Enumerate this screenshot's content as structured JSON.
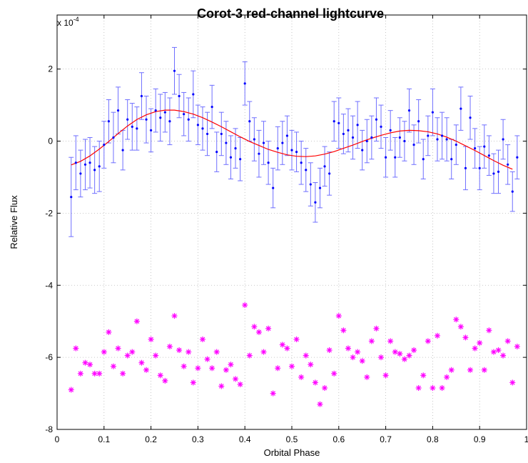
{
  "chart_data": {
    "type": "scatter",
    "title": "Corot-3  red-channel lightcurve",
    "xlabel": "Orbital Phase",
    "ylabel": "Relative Flux",
    "y_scale_label": "x 10",
    "y_scale_exponent": "-4",
    "xlim": [
      0,
      1
    ],
    "ylim": [
      -8,
      3.5
    ],
    "grid": true,
    "x_ticks": [
      "0",
      "0.1",
      "0.2",
      "0.3",
      "0.4",
      "0.5",
      "0.6",
      "0.7",
      "0.8",
      "0.9",
      "1"
    ],
    "y_ticks": [
      "-8",
      "-6",
      "-4",
      "-2",
      "0",
      "2"
    ],
    "model": {
      "name": "",
      "color": "#ff0000",
      "x": [
        0.03,
        0.05,
        0.07,
        0.09,
        0.11,
        0.13,
        0.15,
        0.17,
        0.19,
        0.21,
        0.23,
        0.25,
        0.27,
        0.29,
        0.31,
        0.33,
        0.35,
        0.37,
        0.39,
        0.41,
        0.43,
        0.45,
        0.47,
        0.49,
        0.51,
        0.53,
        0.55,
        0.57,
        0.59,
        0.61,
        0.63,
        0.65,
        0.67,
        0.69,
        0.71,
        0.73,
        0.75,
        0.77,
        0.79,
        0.81,
        0.83,
        0.85,
        0.87,
        0.89,
        0.91,
        0.93,
        0.95,
        0.97
      ],
      "y": [
        -0.66,
        -0.56,
        -0.41,
        -0.22,
        -0.01,
        0.21,
        0.42,
        0.6,
        0.73,
        0.82,
        0.86,
        0.86,
        0.82,
        0.75,
        0.65,
        0.53,
        0.4,
        0.26,
        0.12,
        -0.01,
        -0.12,
        -0.23,
        -0.31,
        -0.38,
        -0.42,
        -0.43,
        -0.41,
        -0.36,
        -0.29,
        -0.2,
        -0.11,
        -0.01,
        0.08,
        0.16,
        0.23,
        0.28,
        0.3,
        0.29,
        0.26,
        0.2,
        0.11,
        0.0,
        -0.13,
        -0.26,
        -0.4,
        -0.54,
        -0.67,
        -0.78
      ]
    },
    "data_series": {
      "name": "",
      "color": "#0000ff",
      "error_bar_color": "#6f6fff",
      "x": [
        0.03,
        0.04,
        0.05,
        0.06,
        0.07,
        0.08,
        0.09,
        0.1,
        0.11,
        0.12,
        0.13,
        0.14,
        0.15,
        0.16,
        0.17,
        0.18,
        0.19,
        0.2,
        0.21,
        0.22,
        0.23,
        0.24,
        0.25,
        0.26,
        0.27,
        0.28,
        0.29,
        0.3,
        0.31,
        0.32,
        0.33,
        0.34,
        0.35,
        0.36,
        0.37,
        0.38,
        0.39,
        0.4,
        0.41,
        0.42,
        0.43,
        0.44,
        0.45,
        0.46,
        0.47,
        0.48,
        0.49,
        0.5,
        0.51,
        0.52,
        0.53,
        0.54,
        0.55,
        0.56,
        0.57,
        0.58,
        0.59,
        0.6,
        0.61,
        0.62,
        0.63,
        0.64,
        0.65,
        0.66,
        0.67,
        0.68,
        0.69,
        0.7,
        0.71,
        0.72,
        0.73,
        0.74,
        0.75,
        0.76,
        0.77,
        0.78,
        0.79,
        0.8,
        0.81,
        0.82,
        0.83,
        0.84,
        0.85,
        0.86,
        0.87,
        0.88,
        0.89,
        0.9,
        0.91,
        0.92,
        0.93,
        0.94,
        0.95,
        0.96,
        0.97,
        0.98
      ],
      "y": [
        -1.55,
        -0.6,
        -0.9,
        -0.65,
        -0.6,
        -0.8,
        -0.7,
        -0.1,
        0.55,
        0.1,
        0.85,
        -0.25,
        0.6,
        0.4,
        0.35,
        1.25,
        0.6,
        0.3,
        0.85,
        0.65,
        0.8,
        0.55,
        1.95,
        1.25,
        0.75,
        0.6,
        1.3,
        0.45,
        0.35,
        0.2,
        0.95,
        -0.3,
        0.2,
        -0.05,
        -0.45,
        -0.2,
        -0.5,
        1.6,
        0.55,
        0.05,
        -0.35,
        -0.05,
        -0.6,
        -1.3,
        -0.2,
        -0.05,
        0.15,
        -0.25,
        -0.3,
        -0.6,
        -0.8,
        -1.2,
        -1.7,
        -1.3,
        -0.7,
        -0.9,
        0.55,
        0.5,
        0.2,
        0.3,
        0.1,
        0.45,
        -0.25,
        0.0,
        0.1,
        0.6,
        0.4,
        -0.45,
        0.3,
        -0.45,
        0.1,
        0.0,
        0.85,
        -0.1,
        0.55,
        -0.5,
        0.15,
        0.8,
        0.05,
        0.15,
        0.05,
        -0.5,
        -0.1,
        0.9,
        -0.75,
        0.65,
        -0.2,
        -0.75,
        -0.15,
        -0.4,
        -0.9,
        -0.85,
        0.05,
        -0.65,
        -1.4,
        -0.45
      ],
      "error": [
        1.1,
        0.75,
        0.65,
        0.7,
        0.7,
        0.65,
        0.7,
        0.65,
        0.6,
        0.7,
        0.65,
        0.55,
        0.55,
        0.65,
        0.6,
        0.65,
        0.65,
        0.6,
        0.6,
        0.65,
        0.55,
        0.65,
        0.65,
        0.6,
        0.6,
        0.6,
        0.65,
        0.55,
        0.6,
        0.6,
        0.6,
        0.55,
        0.6,
        0.6,
        0.6,
        0.55,
        0.6,
        0.6,
        0.55,
        0.6,
        0.65,
        0.6,
        0.6,
        0.55,
        0.6,
        0.6,
        0.55,
        0.55,
        0.55,
        0.6,
        0.6,
        0.6,
        0.55,
        0.55,
        0.55,
        0.6,
        0.55,
        0.7,
        0.55,
        0.6,
        0.6,
        0.65,
        0.55,
        0.6,
        0.6,
        0.6,
        0.6,
        0.55,
        0.55,
        0.55,
        0.55,
        0.55,
        0.6,
        0.55,
        0.6,
        0.55,
        0.55,
        0.65,
        0.6,
        0.65,
        0.6,
        0.55,
        0.55,
        0.6,
        0.6,
        0.6,
        0.55,
        0.6,
        0.6,
        0.55,
        0.55,
        0.6,
        0.55,
        0.55,
        0.55,
        0.6
      ]
    },
    "residual_series": {
      "name": "",
      "color": "#ff00ff",
      "marker": "asterisk",
      "x": [
        0.03,
        0.04,
        0.05,
        0.06,
        0.07,
        0.08,
        0.09,
        0.1,
        0.11,
        0.12,
        0.13,
        0.14,
        0.15,
        0.16,
        0.17,
        0.18,
        0.19,
        0.2,
        0.21,
        0.22,
        0.23,
        0.24,
        0.25,
        0.26,
        0.27,
        0.28,
        0.29,
        0.3,
        0.31,
        0.32,
        0.33,
        0.34,
        0.35,
        0.36,
        0.37,
        0.38,
        0.39,
        0.4,
        0.41,
        0.42,
        0.43,
        0.44,
        0.45,
        0.46,
        0.47,
        0.48,
        0.49,
        0.5,
        0.51,
        0.52,
        0.53,
        0.54,
        0.55,
        0.56,
        0.57,
        0.58,
        0.59,
        0.6,
        0.61,
        0.62,
        0.63,
        0.64,
        0.65,
        0.66,
        0.67,
        0.68,
        0.69,
        0.7,
        0.71,
        0.72,
        0.73,
        0.74,
        0.75,
        0.76,
        0.77,
        0.78,
        0.79,
        0.8,
        0.81,
        0.82,
        0.83,
        0.84,
        0.85,
        0.86,
        0.87,
        0.88,
        0.89,
        0.9,
        0.91,
        0.92,
        0.93,
        0.94,
        0.95,
        0.96,
        0.97,
        0.98
      ],
      "y": [
        -6.9,
        -5.75,
        -6.45,
        -6.15,
        -6.2,
        -6.45,
        -6.45,
        -5.85,
        -5.3,
        -6.25,
        -5.75,
        -6.45,
        -5.95,
        -5.85,
        -5.0,
        -6.15,
        -6.35,
        -5.5,
        -5.95,
        -6.5,
        -6.65,
        -5.7,
        -4.85,
        -5.8,
        -6.25,
        -5.85,
        -6.7,
        -6.3,
        -5.5,
        -6.05,
        -6.3,
        -5.85,
        -6.8,
        -6.35,
        -6.2,
        -6.6,
        -6.75,
        -4.55,
        -5.95,
        -5.15,
        -5.3,
        -5.85,
        -5.2,
        -7.0,
        -6.3,
        -5.65,
        -5.75,
        -6.25,
        -5.5,
        -6.55,
        -5.95,
        -6.2,
        -6.7,
        -7.3,
        -6.85,
        -5.8,
        -6.45,
        -4.85,
        -5.25,
        -5.75,
        -6.0,
        -5.85,
        -6.1,
        -6.55,
        -5.55,
        -5.2,
        -6.0,
        -6.5,
        -5.55,
        -5.85,
        -5.9,
        -6.05,
        -5.95,
        -5.8,
        -6.85,
        -6.5,
        -5.55,
        -6.85,
        -5.4,
        -6.85,
        -6.55,
        -6.35,
        -4.95,
        -5.15,
        -5.45,
        -6.35,
        -5.75,
        -5.6,
        -6.35,
        -5.25,
        -5.85,
        -5.8,
        -5.95,
        -5.55,
        -6.7,
        -5.7
      ]
    }
  }
}
